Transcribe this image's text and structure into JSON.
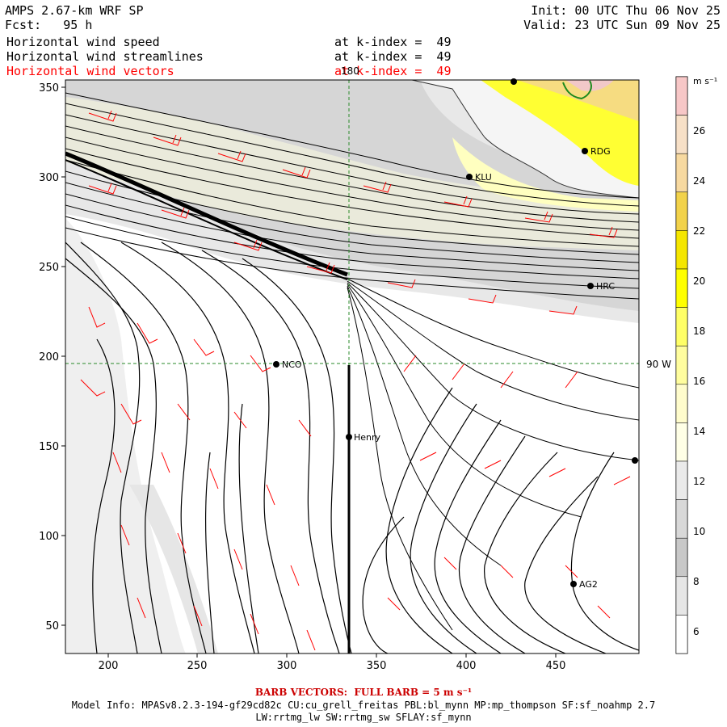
{
  "header": {
    "model": "AMPS 2.67-km WRF SP",
    "forecast": "Fcst:   95 h",
    "init": "Init: 00 UTC Thu 06 Nov 25",
    "valid": "Valid: 23 UTC Sun 09 Nov 25",
    "fields": [
      {
        "label": "Horizontal wind speed",
        "level": "at k-index =  49",
        "color": "#000000"
      },
      {
        "label": "Horizontal wind streamlines",
        "level": "at k-index =  49",
        "color": "#000000"
      },
      {
        "label": "Horizontal wind vectors",
        "level": "at k-index =  49",
        "color": "#ff0000"
      }
    ]
  },
  "map": {
    "x_ticks": [
      "200",
      "250",
      "300",
      "350",
      "400",
      "450"
    ],
    "y_ticks": [
      "50",
      "100",
      "150",
      "200",
      "250",
      "300",
      "350"
    ],
    "meridian_label": "180",
    "parallel_label": "90 W",
    "stations": [
      {
        "name": "RDG"
      },
      {
        "name": "KLU"
      },
      {
        "name": "HRC"
      },
      {
        "name": "NCO"
      },
      {
        "name": "Henry"
      },
      {
        "name": "AG2"
      }
    ]
  },
  "colorbar": {
    "unit": "m s⁻¹",
    "labels": [
      "26",
      "24",
      "22",
      "20",
      "18",
      "16",
      "14",
      "12",
      "10",
      "8",
      "6"
    ],
    "colors": [
      "#f7c7c7",
      "#f7e0c7",
      "#f7d9a0",
      "#f2d24a",
      "#f5e600",
      "#ffff00",
      "#ffff66",
      "#fffd9e",
      "#fffccc",
      "#ffffe6",
      "#eaeaea",
      "#d8d8d8",
      "#c8c8c8",
      "#e6e6e6",
      "#ffffff"
    ]
  },
  "footer": {
    "barb": "BARB VECTORS:  FULL BARB = 5 m s⁻¹",
    "model_info": "Model Info: MPASv8.2.3-194-gf29cd82c CU:cu_grell_freitas PBL:bl_mynn MP:mp_thompson SF:sf_noahmp 2.7",
    "physics": "LW:rrtmg_lw SW:rrtmg_sw SFLAY:sf_mynn"
  }
}
